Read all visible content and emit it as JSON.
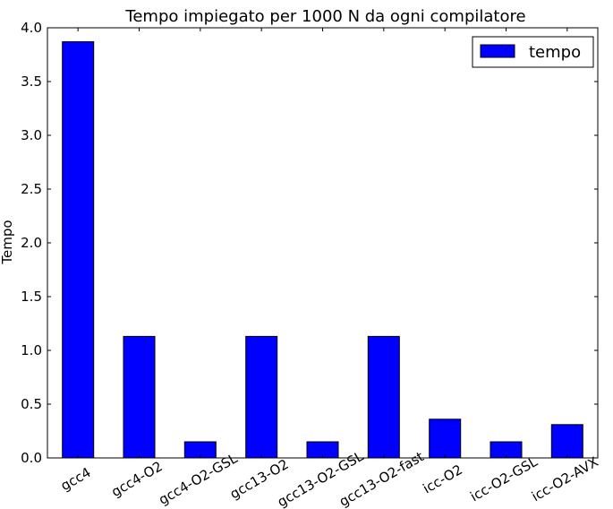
{
  "chart_data": {
    "type": "bar",
    "title": "Tempo impiegato per 1000 N da ogni compilatore",
    "xlabel": "",
    "ylabel": "Tempo",
    "categories": [
      "gcc4",
      "gcc4-O2",
      "gcc4-O2-GSL",
      "gcc13-O2",
      "gcc13-O2-GSL",
      "gcc13-O2-fast",
      "icc-O2",
      "icc-O2-GSL",
      "icc-O2-AVX"
    ],
    "series": [
      {
        "name": "tempo",
        "color": "#0000ff",
        "values": [
          3.87,
          1.13,
          0.15,
          1.13,
          0.15,
          1.13,
          0.36,
          0.15,
          0.31
        ]
      }
    ],
    "ylim": [
      0,
      4.0
    ],
    "yticks": [
      "0.0",
      "0.5",
      "1.0",
      "1.5",
      "2.0",
      "2.5",
      "3.0",
      "3.5",
      "4.0"
    ],
    "grid": false,
    "legend_position": "top-right"
  }
}
